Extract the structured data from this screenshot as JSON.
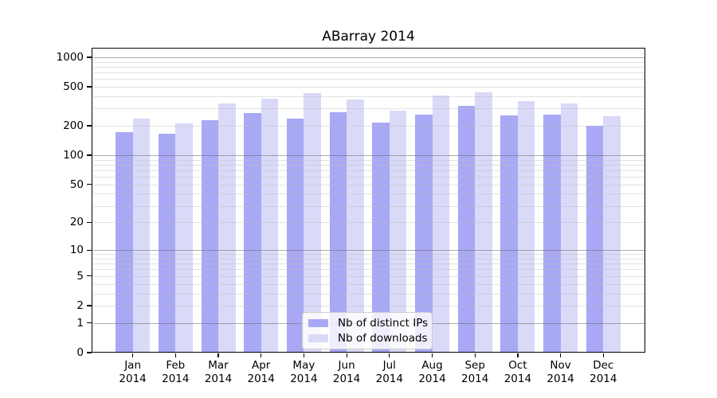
{
  "chart_data": {
    "type": "bar",
    "title": "ABarray 2014",
    "categories": [
      "Jan 2014",
      "Feb 2014",
      "Mar 2014",
      "Apr 2014",
      "May 2014",
      "Jun 2014",
      "Jul 2014",
      "Aug 2014",
      "Sep 2014",
      "Oct 2014",
      "Nov 2014",
      "Dec 2014"
    ],
    "months": [
      "Jan",
      "Feb",
      "Mar",
      "Apr",
      "May",
      "Jun",
      "Jul",
      "Aug",
      "Sep",
      "Oct",
      "Nov",
      "Dec"
    ],
    "year": "2014",
    "series": [
      {
        "name": "Nb of distinct IPs",
        "color": "#a8a8f5",
        "values": [
          174,
          165,
          230,
          268,
          237,
          276,
          216,
          262,
          318,
          256,
          262,
          200
        ]
      },
      {
        "name": "Nb of downloads",
        "color": "#d9d9f8",
        "values": [
          235,
          210,
          335,
          376,
          433,
          371,
          286,
          410,
          440,
          360,
          336,
          252
        ]
      }
    ],
    "yscale": "log10(1+x)",
    "ylim": [
      0,
      1250
    ],
    "y_ticks": [
      0,
      1,
      2,
      5,
      10,
      20,
      50,
      100,
      200,
      500,
      1000
    ],
    "y_tick_labels": [
      "0",
      "1",
      "2",
      "5",
      "10",
      "20",
      "50",
      "100",
      "200",
      "500",
      "1000"
    ],
    "grid": {
      "orientation": "horizontal",
      "major_lines": [
        1,
        10,
        100,
        1000
      ],
      "minor_steps_per_decade": [
        2,
        3,
        4,
        5,
        6,
        7,
        8,
        9
      ]
    },
    "legend": {
      "position": "inside-bottom-center",
      "items": [
        "Nb of distinct IPs",
        "Nb of downloads"
      ]
    },
    "xlabel": "",
    "ylabel": ""
  }
}
